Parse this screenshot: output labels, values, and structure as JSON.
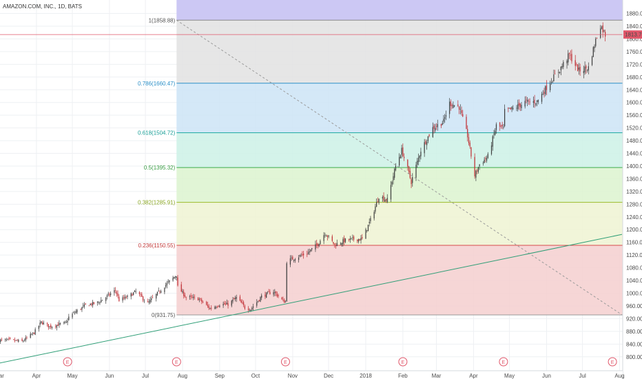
{
  "header": {
    "symbol_label": "AMAZON.COM, INC., 1D, BATS"
  },
  "price_tag": {
    "value": "1813.70",
    "color": "#e0576a"
  },
  "colors": {
    "up": "#3a3a3a",
    "down": "#c0292f",
    "grid": "#eef0f3",
    "trendline": "#2e9e76",
    "diagonal": "#9a9a9a",
    "price_line": "#e0576a"
  },
  "chart_data": {
    "type": "candlestick",
    "title": "",
    "xlabel": "",
    "ylabel": "",
    "ylim": [
      780,
      1905
    ],
    "x_range": [
      "2017-03-01",
      "2018-08-03"
    ],
    "y_ticks": [
      800,
      840,
      880,
      920,
      960,
      1000,
      1040,
      1080,
      1120,
      1160,
      1200,
      1240,
      1280,
      1320,
      1360,
      1400,
      1440,
      1480,
      1520,
      1560,
      1600,
      1640,
      1680,
      1720,
      1760,
      1800,
      1840,
      1880
    ],
    "y_tick_labels": [
      "800.00",
      "840.00",
      "880.00",
      "920.00",
      "960.00",
      "1000.00",
      "1040.00",
      "1080.00",
      "1120.00",
      "1160.00",
      "1200.00",
      "1240.00",
      "1280.00",
      "1320.00",
      "1360.00",
      "1400.00",
      "1440.00",
      "1480.00",
      "1520.00",
      "1560.00",
      "1600.00",
      "1640.00",
      "1680.00",
      "1720.00",
      "1760.00",
      "1800.00",
      "1840.00",
      "1880.00"
    ],
    "x_ticks": [
      {
        "label": "Mar",
        "date": "2017-03-01"
      },
      {
        "label": "Apr",
        "date": "2017-04-01"
      },
      {
        "label": "May",
        "date": "2017-05-01"
      },
      {
        "label": "Jun",
        "date": "2017-06-01"
      },
      {
        "label": "Jul",
        "date": "2017-07-01"
      },
      {
        "label": "Aug",
        "date": "2017-08-01"
      },
      {
        "label": "Sep",
        "date": "2017-09-01"
      },
      {
        "label": "Oct",
        "date": "2017-10-01"
      },
      {
        "label": "Nov",
        "date": "2017-11-01"
      },
      {
        "label": "Dec",
        "date": "2017-12-01"
      },
      {
        "label": "2018",
        "date": "2018-01-01"
      },
      {
        "label": "Feb",
        "date": "2018-02-01"
      },
      {
        "label": "Mar",
        "date": "2018-03-01"
      },
      {
        "label": "Apr",
        "date": "2018-04-01"
      },
      {
        "label": "May",
        "date": "2018-05-01"
      },
      {
        "label": "Jun",
        "date": "2018-06-01"
      },
      {
        "label": "Jul",
        "date": "2018-07-01"
      },
      {
        "label": "Aug",
        "date": "2018-08-01"
      }
    ],
    "fib_retracement": {
      "start_date": "2017-07-27",
      "end_date": "2018-08-03",
      "levels": [
        {
          "ratio": 1,
          "price": 1858.88,
          "label": "1(1858.88)",
          "line_color": "#888888",
          "text_color": "#555555",
          "fill_color": "#ccc8f4"
        },
        {
          "ratio": 0.786,
          "price": 1660.47,
          "label": "0.786(1660.47)",
          "line_color": "#2b8fc7",
          "text_color": "#2b8fc7",
          "fill_color": "#e2e2e2"
        },
        {
          "ratio": 0.618,
          "price": 1504.72,
          "label": "0.618(1504.72)",
          "line_color": "#1aa8a0",
          "text_color": "#1a9f97",
          "fill_color": "#cde4f6"
        },
        {
          "ratio": 0.5,
          "price": 1395.32,
          "label": "0.5(1395.32)",
          "line_color": "#3eaa4a",
          "text_color": "#3a9e44",
          "fill_color": "#ccf1e6"
        },
        {
          "ratio": 0.382,
          "price": 1285.91,
          "label": "0.382(1285.91)",
          "line_color": "#9cbb2a",
          "text_color": "#8aa722",
          "fill_color": "#dcf3cf"
        },
        {
          "ratio": 0.236,
          "price": 1150.55,
          "label": "0.236(1150.55)",
          "line_color": "#d84a4a",
          "text_color": "#c23a3a",
          "fill_color": "#eef3d2"
        },
        {
          "ratio": 0,
          "price": 931.75,
          "label": "0(931.75)",
          "line_color": "#999999",
          "text_color": "#555555",
          "fill_color": "#f4cfcf"
        }
      ]
    },
    "trendline": {
      "start": [
        "2017-03-01",
        780
      ],
      "end": [
        "2018-08-03",
        1185
      ]
    },
    "diagonal": {
      "start": [
        "2017-07-27",
        1858.88
      ],
      "end": [
        "2018-08-03",
        932
      ]
    },
    "current_price": 1813.7,
    "earnings_markers": [
      {
        "label": "E",
        "date": "2017-04-27"
      },
      {
        "label": "E",
        "date": "2017-07-27"
      },
      {
        "label": "E",
        "date": "2017-10-26"
      },
      {
        "label": "E",
        "date": "2018-02-01"
      },
      {
        "label": "E",
        "date": "2018-04-26"
      },
      {
        "label": "E",
        "date": "2018-07-26"
      }
    ],
    "series": [
      {
        "type": "close_path",
        "points": [
          [
            "2017-03-01",
            852
          ],
          [
            "2017-03-10",
            852
          ],
          [
            "2017-03-20",
            848
          ],
          [
            "2017-03-30",
            876
          ],
          [
            "2017-04-05",
            909
          ],
          [
            "2017-04-12",
            895
          ],
          [
            "2017-04-20",
            902
          ],
          [
            "2017-04-26",
            907
          ],
          [
            "2017-04-28",
            925
          ],
          [
            "2017-05-05",
            945
          ],
          [
            "2017-05-12",
            962
          ],
          [
            "2017-05-22",
            970
          ],
          [
            "2017-06-01",
            995
          ],
          [
            "2017-06-06",
            1010
          ],
          [
            "2017-06-09",
            978
          ],
          [
            "2017-06-16",
            988
          ],
          [
            "2017-06-23",
            1005
          ],
          [
            "2017-07-03",
            968
          ],
          [
            "2017-07-10",
            995
          ],
          [
            "2017-07-17",
            1023
          ],
          [
            "2017-07-27",
            1058
          ],
          [
            "2017-07-28",
            1020
          ],
          [
            "2017-08-04",
            987
          ],
          [
            "2017-08-14",
            983
          ],
          [
            "2017-08-24",
            952
          ],
          [
            "2017-09-01",
            965
          ],
          [
            "2017-09-08",
            965
          ],
          [
            "2017-09-15",
            986
          ],
          [
            "2017-09-22",
            955
          ],
          [
            "2017-09-27",
            950
          ],
          [
            "2017-10-06",
            990
          ],
          [
            "2017-10-16",
            1006
          ],
          [
            "2017-10-24",
            975
          ],
          [
            "2017-10-26",
            973
          ],
          [
            "2017-10-27",
            1100
          ],
          [
            "2017-11-03",
            1112
          ],
          [
            "2017-11-13",
            1125
          ],
          [
            "2017-11-22",
            1155
          ],
          [
            "2017-11-28",
            1190
          ],
          [
            "2017-12-06",
            1152
          ],
          [
            "2017-12-14",
            1165
          ],
          [
            "2017-12-22",
            1170
          ],
          [
            "2017-12-29",
            1170
          ],
          [
            "2018-01-05",
            1230
          ],
          [
            "2018-01-12",
            1305
          ],
          [
            "2018-01-19",
            1293
          ],
          [
            "2018-01-26",
            1400
          ],
          [
            "2018-01-31",
            1450
          ],
          [
            "2018-02-05",
            1390
          ],
          [
            "2018-02-08",
            1350
          ],
          [
            "2018-02-16",
            1450
          ],
          [
            "2018-02-26",
            1520
          ],
          [
            "2018-03-07",
            1540
          ],
          [
            "2018-03-12",
            1598
          ],
          [
            "2018-03-20",
            1586
          ],
          [
            "2018-03-27",
            1495
          ],
          [
            "2018-04-02",
            1370
          ],
          [
            "2018-04-06",
            1405
          ],
          [
            "2018-04-13",
            1430
          ],
          [
            "2018-04-20",
            1527
          ],
          [
            "2018-04-26",
            1518
          ],
          [
            "2018-04-27",
            1572
          ],
          [
            "2018-05-04",
            1580
          ],
          [
            "2018-05-14",
            1601
          ],
          [
            "2018-05-24",
            1603
          ],
          [
            "2018-06-04",
            1665
          ],
          [
            "2018-06-12",
            1704
          ],
          [
            "2018-06-20",
            1750
          ],
          [
            "2018-06-28",
            1700
          ],
          [
            "2018-07-06",
            1710
          ],
          [
            "2018-07-12",
            1796
          ],
          [
            "2018-07-16",
            1843
          ],
          [
            "2018-07-20",
            1813.7
          ]
        ]
      }
    ]
  }
}
